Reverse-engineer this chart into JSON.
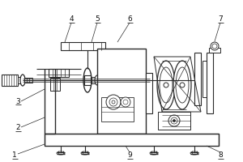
{
  "background_color": "#ffffff",
  "line_color": "#2a2a2a",
  "label_color": "#111111",
  "figsize": [
    3.0,
    2.0
  ],
  "dpi": 100,
  "xlim": [
    0,
    300
  ],
  "ylim": [
    0,
    200
  ]
}
